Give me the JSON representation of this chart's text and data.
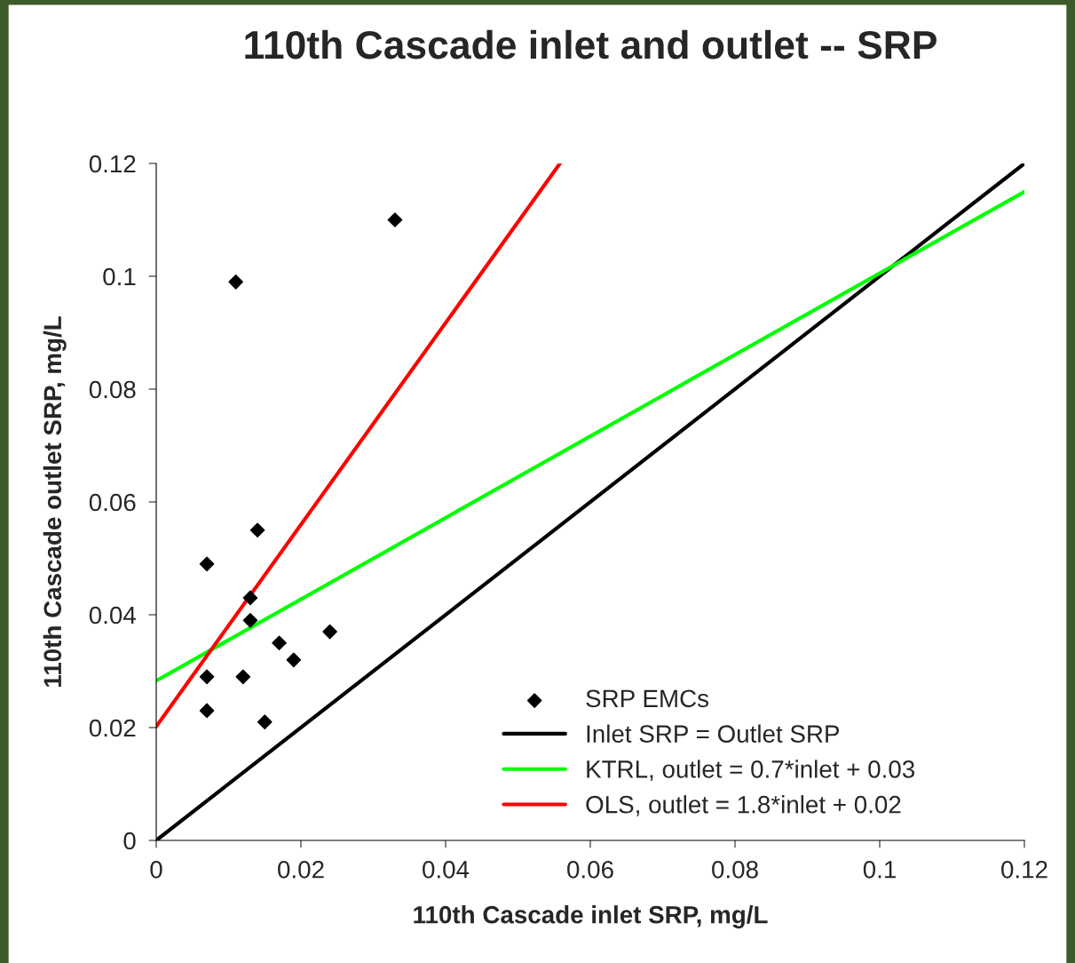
{
  "chart_data": {
    "type": "scatter",
    "title": "110th Cascade inlet and outlet -- SRP",
    "xlabel": "110th Cascade inlet SRP, mg/L",
    "ylabel": "110th Cascade outlet SRP, mg/L",
    "xlim": [
      0,
      0.12
    ],
    "ylim": [
      0,
      0.12
    ],
    "xticks": [
      0,
      0.02,
      0.04,
      0.06,
      0.08,
      0.1,
      0.12
    ],
    "yticks": [
      0,
      0.02,
      0.04,
      0.06,
      0.08,
      0.1,
      0.12
    ],
    "grid": false,
    "legend": "bottom right",
    "series": [
      {
        "name": "SRP EMCs",
        "marker": "diamond",
        "color": "#000000",
        "x": [
          0.007,
          0.011,
          0.033,
          0.014,
          0.013,
          0.013,
          0.017,
          0.019,
          0.024,
          0.012,
          0.007,
          0.007,
          0.015
        ],
        "values": [
          0.049,
          0.099,
          0.11,
          0.055,
          0.043,
          0.039,
          0.035,
          0.032,
          0.037,
          0.029,
          0.029,
          0.023,
          0.021
        ]
      },
      {
        "name": "Inlet SRP = Outlet SRP",
        "type": "line",
        "color": "#000000",
        "x": [
          0,
          0.12
        ],
        "values": [
          0,
          0.12
        ]
      },
      {
        "name": "KTRL, outlet = 0.7*inlet + 0.03",
        "type": "line",
        "color": "#00ff00",
        "x": [
          0,
          0.12
        ],
        "values": [
          0.0283,
          0.115
        ]
      },
      {
        "name": "OLS, outlet = 1.8*inlet + 0.02",
        "type": "line",
        "color": "#ff0000",
        "x": [
          0,
          0.0558
        ],
        "values": [
          0.0202,
          0.12
        ]
      }
    ]
  }
}
